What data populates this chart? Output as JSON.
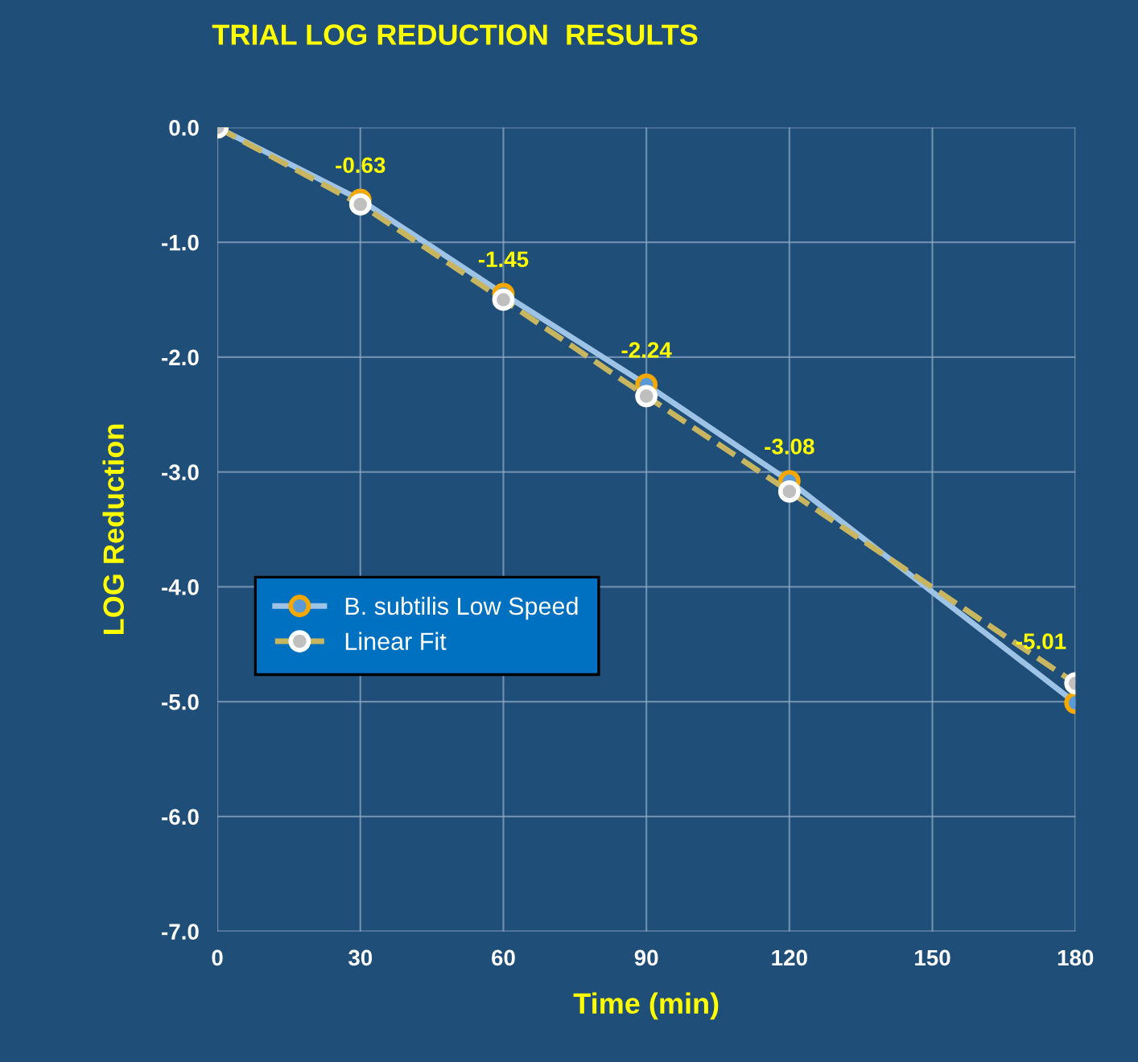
{
  "chart_data": {
    "type": "line",
    "title": "TRIAL LOG REDUCTION  RESULTS",
    "xlabel": "Time (min)",
    "ylabel": "LOG Reduction",
    "x": [
      0,
      30,
      60,
      90,
      120,
      180
    ],
    "series": [
      {
        "name": "B. subtilis Low Speed",
        "color": "#f5a800",
        "values": [
          0,
          -0.63,
          -1.45,
          -2.24,
          -3.08,
          -5.01
        ],
        "value_labels": [
          null,
          "-0.63",
          "-1.45",
          "-2.24",
          "-3.08",
          "-5.01"
        ]
      },
      {
        "name": "Linear Fit",
        "color": "#c8b560",
        "line_style": "dashed",
        "values": [
          0,
          -0.67,
          -1.5,
          -2.34,
          -3.17,
          -4.84
        ]
      }
    ],
    "xlim": [
      0,
      180
    ],
    "xticks": [
      0,
      30,
      60,
      90,
      120,
      150,
      180
    ],
    "ylim": [
      -7,
      0
    ],
    "yticks": [
      {
        "value": 0,
        "label": "0.0"
      },
      {
        "value": -1,
        "label": "-1.0"
      },
      {
        "value": -2,
        "label": "-2.0"
      },
      {
        "value": -3,
        "label": "-3.0"
      },
      {
        "value": -4,
        "label": "-4.0"
      },
      {
        "value": -5,
        "label": "-5.0"
      },
      {
        "value": -6,
        "label": "-6.0"
      },
      {
        "value": -7,
        "label": "-7.0"
      }
    ],
    "grid": true,
    "legend": "center left",
    "marker": "circle"
  }
}
